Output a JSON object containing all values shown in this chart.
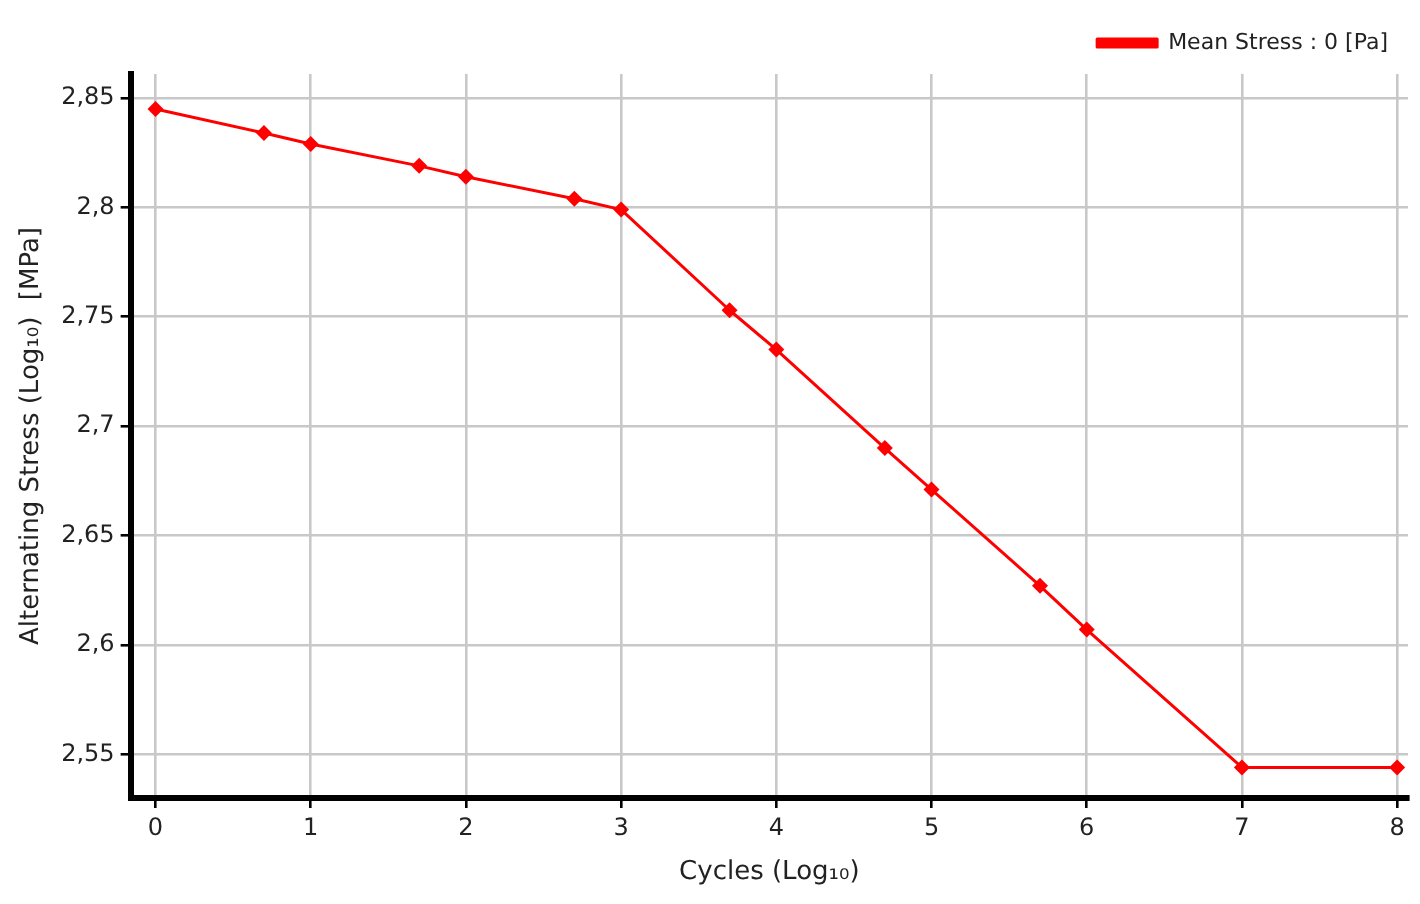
{
  "chart_data": {
    "type": "line",
    "xlabel": "Cycles (Log₁₀)",
    "ylabel": "Alternating Stress (Log₁₀)  [MPa]",
    "x": [
      0,
      0.699,
      1,
      1.699,
      2,
      2.699,
      3,
      3.699,
      4,
      4.699,
      5,
      5.699,
      6,
      7,
      8
    ],
    "series": [
      {
        "name": "Mean Stress : 0 [Pa]",
        "color": "#ff0000",
        "values": [
          2.845,
          2.834,
          2.829,
          2.819,
          2.814,
          2.804,
          2.799,
          2.753,
          2.735,
          2.69,
          2.671,
          2.627,
          2.607,
          2.544,
          2.544
        ]
      }
    ],
    "xlim": [
      -0.16,
      8.07
    ],
    "xticks": [
      0,
      1,
      2,
      3,
      4,
      5,
      6,
      7,
      8
    ],
    "ylim": [
      2.53,
      2.861
    ],
    "yticks": [
      {
        "value": 2.55,
        "label": "2,55"
      },
      {
        "value": 2.6,
        "label": "2,6"
      },
      {
        "value": 2.65,
        "label": "2,65"
      },
      {
        "value": 2.7,
        "label": "2,7"
      },
      {
        "value": 2.75,
        "label": "2,75"
      },
      {
        "value": 2.8,
        "label": "2,8"
      },
      {
        "value": 2.85,
        "label": "2,85"
      }
    ],
    "grid": true,
    "legend": "top right",
    "marker": "diamond",
    "line_style": "solid"
  }
}
